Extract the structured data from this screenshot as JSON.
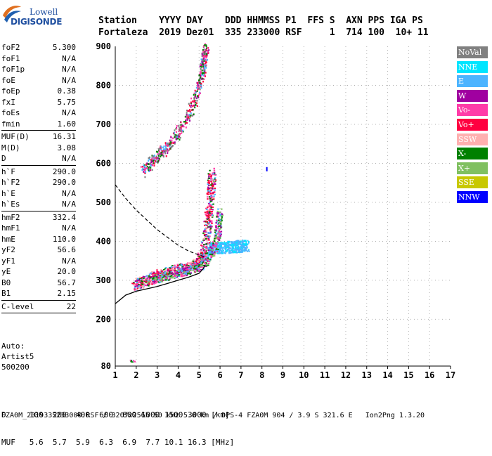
{
  "logo": {
    "line1": "Lowell",
    "line2": "DIGISONDE"
  },
  "header": {
    "labels_line": "Station    YYYY DAY    DDD HHMMSS P1  FFS S  AXN PPS IGA PS",
    "values_line": "Fortaleza  2019 Dez01  335 233000 RSF     1  714 100  10+ 11"
  },
  "params": [
    [
      {
        "k": "foF2",
        "v": "5.300"
      },
      {
        "k": "foF1",
        "v": "N/A"
      },
      {
        "k": "foF1p",
        "v": "N/A"
      },
      {
        "k": "foE",
        "v": "N/A"
      },
      {
        "k": "foEp",
        "v": "0.38"
      },
      {
        "k": "fxI",
        "v": "5.75"
      },
      {
        "k": "foEs",
        "v": "N/A"
      },
      {
        "k": "fmin",
        "v": "1.60"
      }
    ],
    [
      {
        "k": "MUF(D)",
        "v": "16.31"
      },
      {
        "k": "M(D)",
        "v": "3.08"
      },
      {
        "k": "D",
        "v": "N/A"
      }
    ],
    [
      {
        "k": "h`F",
        "v": "290.0"
      },
      {
        "k": "h`F2",
        "v": "290.0"
      },
      {
        "k": "h`E",
        "v": "N/A"
      },
      {
        "k": "h`Es",
        "v": "N/A"
      }
    ],
    [
      {
        "k": "hmF2",
        "v": "332.4"
      },
      {
        "k": "hmF1",
        "v": "N/A"
      },
      {
        "k": "hmE",
        "v": "110.0"
      },
      {
        "k": "yF2",
        "v": "56.6"
      },
      {
        "k": "yF1",
        "v": "N/A"
      },
      {
        "k": "yE",
        "v": "20.0"
      },
      {
        "k": "B0",
        "v": "56.7"
      },
      {
        "k": "B1",
        "v": "2.15"
      }
    ],
    [
      {
        "k": "C-level",
        "v": "22"
      }
    ]
  ],
  "auto": {
    "line1": "Auto:",
    "line2": "Artist5",
    "line3": "500200"
  },
  "legend": [
    {
      "name": "NoVal",
      "color": "#808080"
    },
    {
      "name": "NNE",
      "color": "#00e5ff"
    },
    {
      "name": "E",
      "color": "#4cb4ff"
    },
    {
      "name": "W",
      "color": "#a000a0"
    },
    {
      "name": "Vo-",
      "color": "#ff3ca8"
    },
    {
      "name": "Vo+",
      "color": "#ff0040"
    },
    {
      "name": "SSW",
      "color": "#ffb0b0"
    },
    {
      "name": "X-",
      "color": "#008000"
    },
    {
      "name": "X+",
      "color": "#80c060"
    },
    {
      "name": "SSE",
      "color": "#c8c800"
    },
    {
      "name": "NNW",
      "color": "#0000ff"
    }
  ],
  "footer": {
    "d_label": "D",
    "d_values": [
      "100",
      "200",
      "400",
      "600",
      "800",
      "1000",
      "1500",
      "3000"
    ],
    "d_unit": "[km]",
    "muf_label": "MUF",
    "muf_values": [
      "5.6",
      "5.7",
      "5.9",
      "6.3",
      "6.9",
      "7.7",
      "10.1",
      "16.3"
    ],
    "muf_unit": "[MHz]",
    "file_line": "FZA0M_2019335233000.RSF / 320fx256h 50 kHz 5.0 km / DPS-4 FZA0M 904 / 3.9 S 321.6 E   Ion2Png 1.3.20"
  },
  "chart_data": {
    "type": "scatter",
    "title": "",
    "xlabel": "",
    "ylabel": "",
    "xlim": [
      1,
      17
    ],
    "ylim": [
      80,
      900
    ],
    "x_ticks": [
      1,
      2,
      3,
      4,
      5,
      6,
      7,
      8,
      9,
      10,
      11,
      12,
      13,
      14,
      15,
      16,
      17
    ],
    "y_ticks": [
      80,
      200,
      300,
      400,
      500,
      600,
      700,
      800,
      900
    ],
    "grid": true,
    "legend_position": "right",
    "traces": {
      "o_trace_main": [
        [
          1.9,
          290
        ],
        [
          2.2,
          296
        ],
        [
          2.6,
          304
        ],
        [
          3.0,
          314
        ],
        [
          3.5,
          322
        ],
        [
          4.0,
          328
        ],
        [
          4.5,
          335
        ],
        [
          5.0,
          348
        ],
        [
          5.2,
          370
        ],
        [
          5.35,
          420
        ],
        [
          5.45,
          480
        ],
        [
          5.55,
          540
        ],
        [
          5.6,
          580
        ]
      ],
      "x_trace_main": [
        [
          2.6,
          298
        ],
        [
          3.2,
          310
        ],
        [
          3.8,
          318
        ],
        [
          4.4,
          326
        ],
        [
          5.0,
          338
        ],
        [
          5.5,
          360
        ],
        [
          5.8,
          400
        ],
        [
          5.9,
          440
        ],
        [
          5.95,
          480
        ]
      ],
      "e_spread": [
        [
          5.4,
          380
        ],
        [
          5.8,
          384
        ],
        [
          6.3,
          386
        ],
        [
          6.8,
          388
        ],
        [
          7.2,
          390
        ]
      ],
      "multihop": [
        [
          2.3,
          580
        ],
        [
          2.8,
          610
        ],
        [
          3.4,
          640
        ],
        [
          4.0,
          680
        ],
        [
          4.6,
          740
        ],
        [
          5.0,
          800
        ],
        [
          5.2,
          860
        ],
        [
          5.3,
          900
        ]
      ],
      "low_echo": [
        [
          1.7,
          92
        ],
        [
          1.9,
          96
        ]
      ],
      "nnw_point": [
        [
          8.2,
          585
        ]
      ]
    },
    "profile_solid": [
      [
        1.0,
        240
      ],
      [
        1.5,
        262
      ],
      [
        2.0,
        272
      ],
      [
        2.5,
        278
      ],
      [
        3.0,
        284
      ],
      [
        3.5,
        292
      ],
      [
        4.0,
        300
      ],
      [
        4.5,
        308
      ],
      [
        5.0,
        318
      ],
      [
        5.2,
        330
      ],
      [
        5.3,
        340
      ]
    ],
    "profile_dashed": [
      [
        1.0,
        545
      ],
      [
        1.5,
        510
      ],
      [
        2.0,
        480
      ],
      [
        2.5,
        455
      ],
      [
        3.0,
        430
      ],
      [
        3.5,
        410
      ],
      [
        4.0,
        390
      ],
      [
        4.5,
        375
      ],
      [
        5.0,
        365
      ],
      [
        5.3,
        360
      ]
    ]
  }
}
